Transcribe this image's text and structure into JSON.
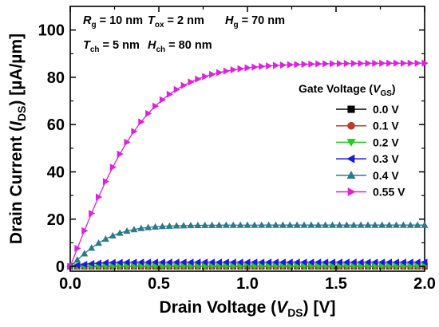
{
  "chart_data": {
    "type": "line",
    "xlabel": {
      "pre": "Drain Voltage (",
      "var": "V",
      "sub": "DS",
      "post": ") [V]"
    },
    "ylabel": {
      "pre": "Drain Current (",
      "var": "I",
      "sub": "DS",
      "post": ") [µA/µm]"
    },
    "xlim": [
      0,
      2.0
    ],
    "ylim": [
      -2,
      110
    ],
    "x_ticks": [
      0.0,
      0.5,
      1.0,
      1.5,
      2.0
    ],
    "x_tick_labels": [
      "0.0",
      "0.5",
      "1.0",
      "1.5",
      "2.0"
    ],
    "y_ticks": [
      0,
      20,
      40,
      60,
      80,
      100
    ],
    "y_tick_labels": [
      "0",
      "20",
      "40",
      "60",
      "80",
      "100"
    ],
    "grid": false,
    "legend_position": "right",
    "params_text": [
      [
        {
          "v": "R",
          "s": "g",
          "t": " = 10 nm"
        },
        {
          "v": "T",
          "s": "ox",
          "t": " = 2 nm"
        },
        {
          "v": "H",
          "s": "g",
          "t": " = 70 nm"
        }
      ],
      [
        {
          "v": "T",
          "s": "ch",
          "t": " = 5 nm"
        },
        {
          "v": "H",
          "s": "ch",
          "t": " = 80 nm"
        }
      ]
    ],
    "legend_title": {
      "pre": "Gate Voltage (",
      "var": "V",
      "sub": "GS",
      "post": ")"
    },
    "series": [
      {
        "name": "0.0 V",
        "color": "#000000",
        "marker": "square",
        "isat": 0.0,
        "vsat": 0.2
      },
      {
        "name": "0.1 V",
        "color": "#c0392b",
        "marker": "circle",
        "isat": 0.02,
        "vsat": 0.2
      },
      {
        "name": "0.2 V",
        "color": "#22cc22",
        "marker": "triangle-down",
        "isat": 0.15,
        "vsat": 0.2
      },
      {
        "name": "0.3 V",
        "color": "#1a1adc",
        "marker": "triangle-left",
        "isat": 1.8,
        "vsat": 0.15
      },
      {
        "name": "0.4 V",
        "color": "#2b7a8c",
        "marker": "triangle-up",
        "isat": 17.5,
        "vsat": 0.25
      },
      {
        "name": "0.55 V",
        "color": "#dd22dd",
        "marker": "triangle-right",
        "isat": 86.0,
        "vsat": 0.45
      }
    ]
  }
}
